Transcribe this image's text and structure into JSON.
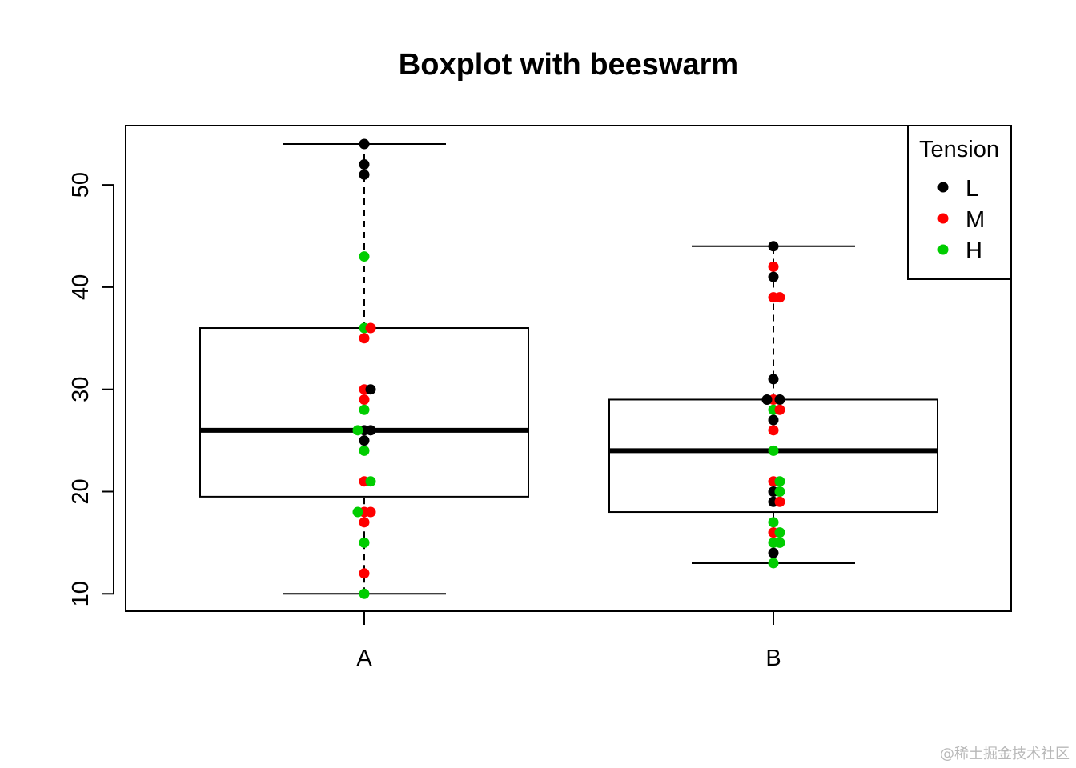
{
  "chart_data": {
    "type": "boxplot",
    "title": "Boxplot with beeswarm",
    "xlabel": "",
    "ylabel": "",
    "categories": [
      "A",
      "B"
    ],
    "y_ticks": [
      10,
      20,
      30,
      40,
      50
    ],
    "ylim": [
      8.3,
      55.8
    ],
    "boxes": [
      {
        "category": "A",
        "whisker_low": 10,
        "q1": 19.5,
        "median": 26,
        "q3": 36,
        "whisker_high": 54
      },
      {
        "category": "B",
        "whisker_low": 13,
        "q1": 18,
        "median": 24,
        "q3": 29,
        "whisker_high": 44
      }
    ],
    "legend": {
      "title": "Tension",
      "position": "top-right",
      "entries": [
        {
          "label": "L",
          "color": "#000000"
        },
        {
          "label": "M",
          "color": "#ff0000"
        },
        {
          "label": "H",
          "color": "#00cd00"
        }
      ]
    },
    "points": [
      {
        "group": "A",
        "tension": "L",
        "value": 54
      },
      {
        "group": "A",
        "tension": "L",
        "value": 52
      },
      {
        "group": "A",
        "tension": "L",
        "value": 51
      },
      {
        "group": "A",
        "tension": "H",
        "value": 43
      },
      {
        "group": "A",
        "tension": "H",
        "value": 36
      },
      {
        "group": "A",
        "tension": "M",
        "value": 36
      },
      {
        "group": "A",
        "tension": "M",
        "value": 35
      },
      {
        "group": "A",
        "tension": "M",
        "value": 30
      },
      {
        "group": "A",
        "tension": "L",
        "value": 30
      },
      {
        "group": "A",
        "tension": "M",
        "value": 29
      },
      {
        "group": "A",
        "tension": "H",
        "value": 28
      },
      {
        "group": "A",
        "tension": "L",
        "value": 26
      },
      {
        "group": "A",
        "tension": "L",
        "value": 26
      },
      {
        "group": "A",
        "tension": "H",
        "value": 26
      },
      {
        "group": "A",
        "tension": "L",
        "value": 25
      },
      {
        "group": "A",
        "tension": "H",
        "value": 24
      },
      {
        "group": "A",
        "tension": "M",
        "value": 21
      },
      {
        "group": "A",
        "tension": "H",
        "value": 21
      },
      {
        "group": "A",
        "tension": "M",
        "value": 18
      },
      {
        "group": "A",
        "tension": "M",
        "value": 18
      },
      {
        "group": "A",
        "tension": "H",
        "value": 18
      },
      {
        "group": "A",
        "tension": "M",
        "value": 17
      },
      {
        "group": "A",
        "tension": "H",
        "value": 15
      },
      {
        "group": "A",
        "tension": "M",
        "value": 12
      },
      {
        "group": "A",
        "tension": "H",
        "value": 10
      },
      {
        "group": "B",
        "tension": "L",
        "value": 44
      },
      {
        "group": "B",
        "tension": "M",
        "value": 42
      },
      {
        "group": "B",
        "tension": "L",
        "value": 41
      },
      {
        "group": "B",
        "tension": "M",
        "value": 39
      },
      {
        "group": "B",
        "tension": "M",
        "value": 39
      },
      {
        "group": "B",
        "tension": "L",
        "value": 31
      },
      {
        "group": "B",
        "tension": "M",
        "value": 29
      },
      {
        "group": "B",
        "tension": "L",
        "value": 29
      },
      {
        "group": "B",
        "tension": "L",
        "value": 29
      },
      {
        "group": "B",
        "tension": "H",
        "value": 28
      },
      {
        "group": "B",
        "tension": "M",
        "value": 28
      },
      {
        "group": "B",
        "tension": "L",
        "value": 27
      },
      {
        "group": "B",
        "tension": "M",
        "value": 26
      },
      {
        "group": "B",
        "tension": "H",
        "value": 24
      },
      {
        "group": "B",
        "tension": "M",
        "value": 21
      },
      {
        "group": "B",
        "tension": "H",
        "value": 21
      },
      {
        "group": "B",
        "tension": "L",
        "value": 20
      },
      {
        "group": "B",
        "tension": "H",
        "value": 20
      },
      {
        "group": "B",
        "tension": "L",
        "value": 19
      },
      {
        "group": "B",
        "tension": "M",
        "value": 19
      },
      {
        "group": "B",
        "tension": "H",
        "value": 17
      },
      {
        "group": "B",
        "tension": "M",
        "value": 16
      },
      {
        "group": "B",
        "tension": "H",
        "value": 16
      },
      {
        "group": "B",
        "tension": "H",
        "value": 15
      },
      {
        "group": "B",
        "tension": "H",
        "value": 15
      },
      {
        "group": "B",
        "tension": "L",
        "value": 14
      },
      {
        "group": "B",
        "tension": "H",
        "value": 13
      }
    ]
  },
  "watermark": "@稀土掘金技术社区"
}
